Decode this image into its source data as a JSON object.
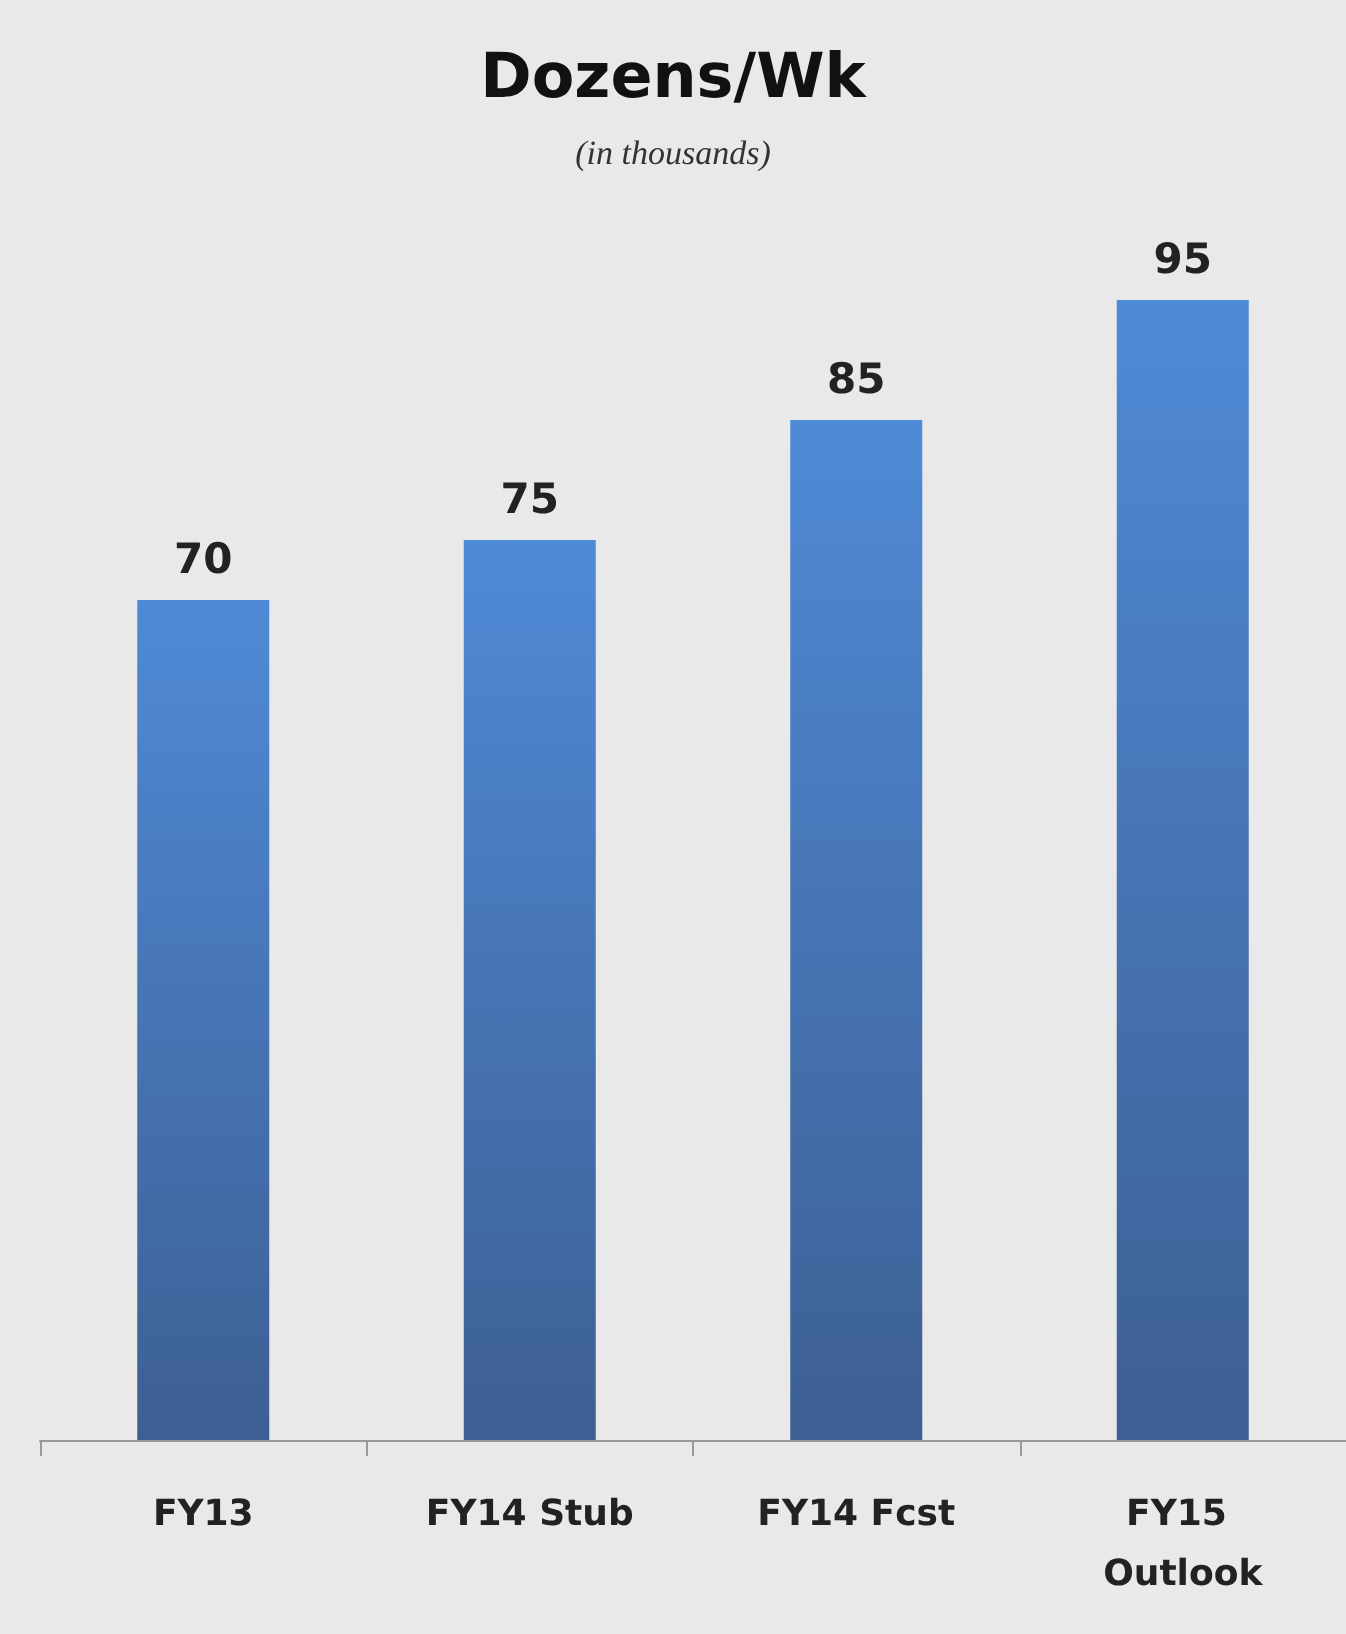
{
  "chart_data": {
    "type": "bar",
    "title": "Dozens/Wk",
    "subtitle": "(in thousands)",
    "categories": [
      "FY13",
      "FY14 Stub",
      "FY14 Fcst",
      "FY15 Outlook"
    ],
    "values": [
      70,
      75,
      85,
      95
    ],
    "color": "#4f8ad6",
    "tick_labels": "x",
    "data_labels": true
  }
}
